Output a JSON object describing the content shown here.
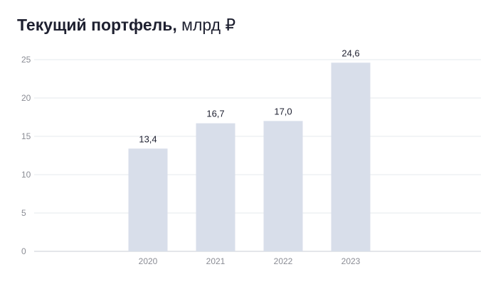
{
  "header": {
    "title_bold": "Текущий портфель,",
    "title_unit": "млрд ₽"
  },
  "chart_data": {
    "type": "bar",
    "title": "Текущий портфель, млрд ₽",
    "categories": [
      "2020",
      "2021",
      "2022",
      "2023"
    ],
    "values": [
      13.4,
      16.7,
      17.0,
      24.6
    ],
    "value_labels": [
      "13,4",
      "16,7",
      "17,0",
      "24,6"
    ],
    "yticks": [
      "0",
      "5",
      "10",
      "15",
      "20",
      "25"
    ],
    "ylim": [
      0,
      25
    ],
    "xlabel": "",
    "ylabel": "",
    "grid": true,
    "legend": "none",
    "colors": {
      "bar": "#d8deea",
      "grid": "#e6e8ee",
      "axis": "#c8ccd4",
      "text": "#1e2030",
      "tick": "#8a8c94"
    }
  }
}
